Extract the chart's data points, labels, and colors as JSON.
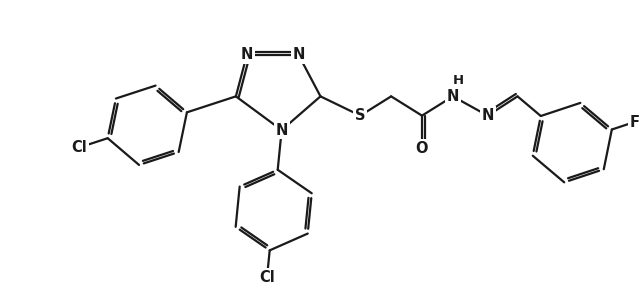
{
  "bg_color": "#ffffff",
  "line_color": "#1a1a1a",
  "line_width": 1.6,
  "font_size": 10.5,
  "figsize": [
    6.4,
    2.84
  ],
  "dpi": 100,
  "xlim": [
    0,
    640
  ],
  "ylim": [
    0,
    284
  ]
}
